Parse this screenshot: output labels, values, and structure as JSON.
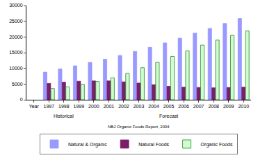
{
  "chart_data": {
    "type": "bar",
    "categories": [
      "Year",
      "1997",
      "1998",
      "1999",
      "2000",
      "2001",
      "2002",
      "2003",
      "2004",
      "2005",
      "2006",
      "2007",
      "2008",
      "2009",
      "2010"
    ],
    "series": [
      {
        "name": "Natural & Organic",
        "color": "#9999ff",
        "values": [
          null,
          8800,
          9800,
          10800,
          11900,
          12900,
          14100,
          15400,
          16700,
          18100,
          19600,
          21200,
          22700,
          24300,
          25900
        ]
      },
      {
        "name": "Natural Foods",
        "color": "#7a1f6a",
        "values": [
          null,
          5200,
          5600,
          5900,
          6000,
          6000,
          5700,
          5300,
          4800,
          4300,
          4000,
          3900,
          3800,
          3900,
          4000
        ]
      },
      {
        "name": "Organic Foods",
        "color": "#ccffcc",
        "values": [
          null,
          3600,
          4100,
          4900,
          5800,
          7000,
          8400,
          10200,
          11900,
          13800,
          15600,
          17400,
          19000,
          20500,
          21900
        ]
      }
    ],
    "ylim": [
      0,
      30000
    ],
    "yticks": [
      0,
      5000,
      10000,
      15000,
      20000,
      25000,
      30000
    ],
    "grid": false,
    "legend": "bottom",
    "annotations": [
      {
        "text": "Historical",
        "from": "1997",
        "to": "1999"
      },
      {
        "text": "Forecast",
        "from": "2000",
        "to": "2010"
      },
      {
        "text": "NBJ Organic Foods Report, 2004"
      }
    ]
  }
}
